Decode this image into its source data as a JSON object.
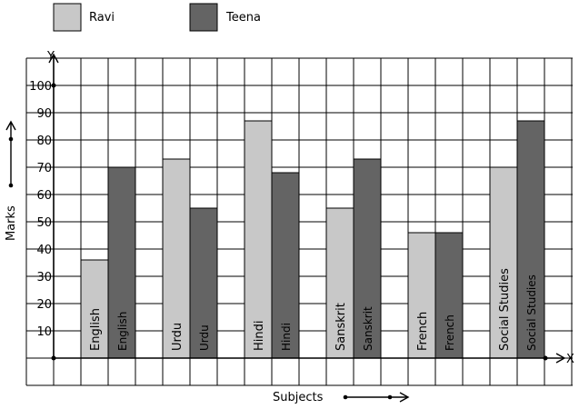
{
  "chart_data": {
    "type": "bar",
    "categories": [
      "English",
      "Urdu",
      "Hindi",
      "Sanskrit",
      "French",
      "Social Studies"
    ],
    "series": [
      {
        "name": "Ravi",
        "values": [
          36,
          73,
          87,
          55,
          46,
          70
        ],
        "color": "#c8c8c8"
      },
      {
        "name": "Teena",
        "values": [
          70,
          55,
          68,
          73,
          46,
          87
        ],
        "color": "#646464"
      }
    ],
    "y_ticks": [
      "10",
      "20",
      "30",
      "40",
      "50",
      "60",
      "70",
      "80",
      "90",
      "100"
    ],
    "ylim": [
      0,
      110
    ],
    "xlabel": "Subjects",
    "ylabel": "Marks",
    "x_axis_letter": "X",
    "y_axis_letter": "Y",
    "grid": true,
    "legend_position": "top-left"
  }
}
